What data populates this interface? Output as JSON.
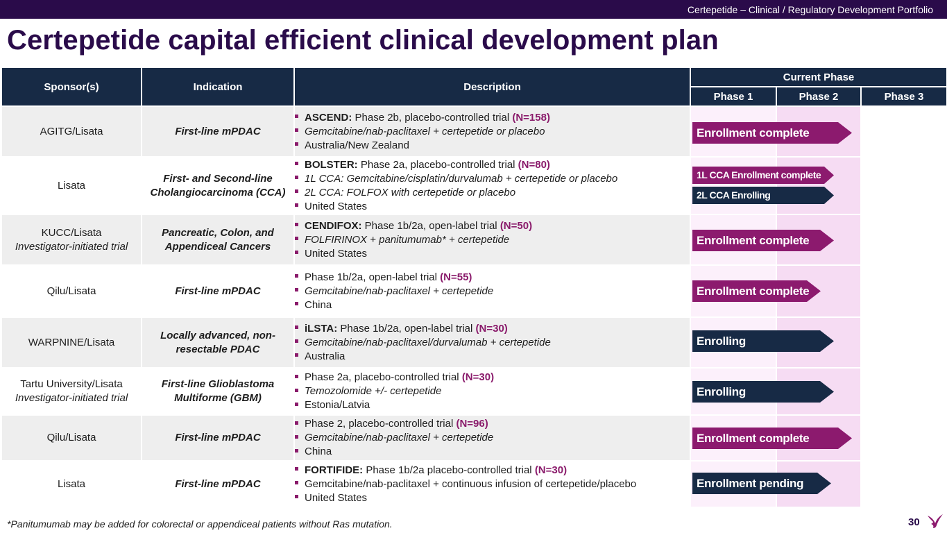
{
  "header": {
    "tagline": "Certepetide – Clinical / Regulatory Development Portfolio"
  },
  "title": "Certepetide capital efficient clinical development plan",
  "table": {
    "columns": {
      "sponsor": "Sponsor(s)",
      "indication": "Indication",
      "description": "Description",
      "current_phase": "Current Phase",
      "phase1": "Phase 1",
      "phase2": "Phase 2",
      "phase3": "Phase 3"
    },
    "rows": [
      {
        "sponsor": "AGITG/Lisata",
        "indication": "First-line mPDAC",
        "desc1": {
          "bold": "ASCEND:",
          "text": " Phase 2b, placebo-controlled trial ",
          "n": "(N=158)"
        },
        "desc2": "Gemcitabine/nab-paclitaxel + certepetide or placebo",
        "desc3": "Australia/New Zealand",
        "status": "Enrollment complete",
        "status_color": "#8c1a6e"
      },
      {
        "sponsor": "Lisata",
        "indication": "First- and Second-line Cholangiocarcinoma (CCA)",
        "desc1": {
          "bold": "BOLSTER:",
          "text": " Phase 2a, placebo-controlled trial ",
          "n": "(N=80)"
        },
        "desc2": "1L CCA: Gemcitabine/cisplatin/durvalumab + certepetide or placebo",
        "desc3": "2L CCA: FOLFOX with certepetide or placebo",
        "desc4": "United States",
        "status": "1L CCA Enrollment complete",
        "status2": "2L CCA Enrolling",
        "status_color": "#8c1a6e",
        "status2_color": "#172a45"
      },
      {
        "sponsor": "KUCC/Lisata",
        "sponsor_sub": "Investigator-initiated trial",
        "indication": "Pancreatic, Colon, and Appendiceal Cancers",
        "desc1": {
          "bold": "CENDIFOX:",
          "text": " Phase 1b/2a, open-label trial ",
          "n": "(N=50)"
        },
        "desc2": "FOLFIRINOX + panitumumab* + certepetide",
        "desc3": "United States",
        "status": "Enrollment complete",
        "status_color": "#8c1a6e"
      },
      {
        "sponsor": "Qilu/Lisata",
        "indication": "First-line mPDAC",
        "desc1": {
          "bold": "",
          "text": "Phase 1b/2a, open-label trial ",
          "n": "(N=55)"
        },
        "desc2": "Gemcitabine/nab-paclitaxel + certepetide",
        "desc3": "China",
        "status": "Enrollment complete",
        "status_color": "#8c1a6e"
      },
      {
        "sponsor": "WARPNINE/Lisata",
        "indication": "Locally advanced, non-resectable PDAC",
        "desc1": {
          "bold": "iLSTA:",
          "text": " Phase 1b/2a, open-label trial ",
          "n": "(N=30)"
        },
        "desc2": "Gemcitabine/nab-paclitaxel/durvalumab + certepetide",
        "desc3": "Australia",
        "status": "Enrolling",
        "status_color": "#172a45"
      },
      {
        "sponsor": "Tartu University/Lisata",
        "sponsor_sub": "Investigator-initiated trial",
        "indication": "First-line Glioblastoma Multiforme (GBM)",
        "desc1": {
          "bold": "",
          "text": "Phase 2a, placebo-controlled trial ",
          "n": "(N=30)"
        },
        "desc2": "Temozolomide +/- certepetide",
        "desc3": "Estonia/Latvia",
        "status": "Enrolling",
        "status_color": "#172a45"
      },
      {
        "sponsor": "Qilu/Lisata",
        "indication": "First-line mPDAC",
        "desc1": {
          "bold": "",
          "text": "Phase 2, placebo-controlled trial ",
          "n": "(N=96)"
        },
        "desc2": "Gemcitabine/nab-paclitaxel + certepetide",
        "desc3": "China",
        "status": "Enrollment complete",
        "status_color": "#8c1a6e"
      },
      {
        "sponsor": "Lisata",
        "indication": "First-line mPDAC",
        "desc1": {
          "bold": "FORTIFIDE:",
          "text": " Phase 1b/2a placebo-controlled trial ",
          "n": "(N=30)"
        },
        "desc2": "Gemcitabine/nab-paclitaxel + continuous infusion of certepetide/placebo",
        "desc3": "United States",
        "status": "Enrollment pending",
        "status_color": "#172a45"
      }
    ]
  },
  "footnote": "*Panitumumab may be added for colorectal or appendiceal patients without Ras mutation.",
  "page_number": "30",
  "logo": {
    "icon": "bird-logo-icon",
    "color": "#8c1a6e"
  }
}
